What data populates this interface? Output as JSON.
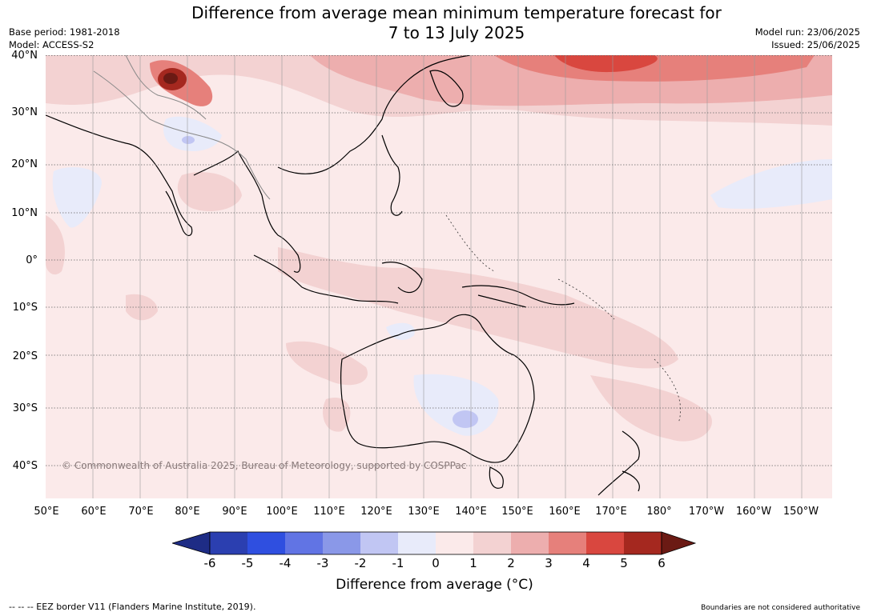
{
  "title_line1": "Difference from average mean minimum temperature forecast for",
  "title_line2": "7 to 13 July 2025",
  "base_period": "Base period: 1981-2018",
  "model": "Model: ACCESS-S2",
  "model_run": "Model run: 23/06/2025",
  "issued": "Issued: 25/06/2025",
  "copyright": "© Commonwealth of Australia 2025, Bureau of Meteorology, supported by COSPPac",
  "lat_labels": [
    "40°N",
    "30°N",
    "20°N",
    "10°N",
    "0°",
    "10°S",
    "20°S",
    "30°S",
    "40°S"
  ],
  "lon_labels": [
    "50°E",
    "60°E",
    "70°E",
    "80°E",
    "90°E",
    "100°E",
    "110°E",
    "120°E",
    "130°E",
    "140°E",
    "150°E",
    "160°E",
    "170°E",
    "180°",
    "170°W",
    "160°W",
    "150°W"
  ],
  "colorbar": {
    "title": "Difference from average (°C)",
    "ticks": [
      "-6",
      "-5",
      "-4",
      "-3",
      "-2",
      "-1",
      "0",
      "1",
      "2",
      "3",
      "4",
      "5",
      "6"
    ],
    "colors": [
      "#1e2c85",
      "#2b3fb0",
      "#2f4fe0",
      "#6174e4",
      "#8a98e8",
      "#c1c6f3",
      "#e8ebfa",
      "#fbeaea",
      "#f3d2d2",
      "#edaeae",
      "#e6807b",
      "#d9473f",
      "#a5281f",
      "#6b1a14"
    ]
  },
  "footer_left": "--  --  -- EEZ border V11 (Flanders Marine Institute, 2019).",
  "footer_right": "Boundaries are not considered authoritative"
}
